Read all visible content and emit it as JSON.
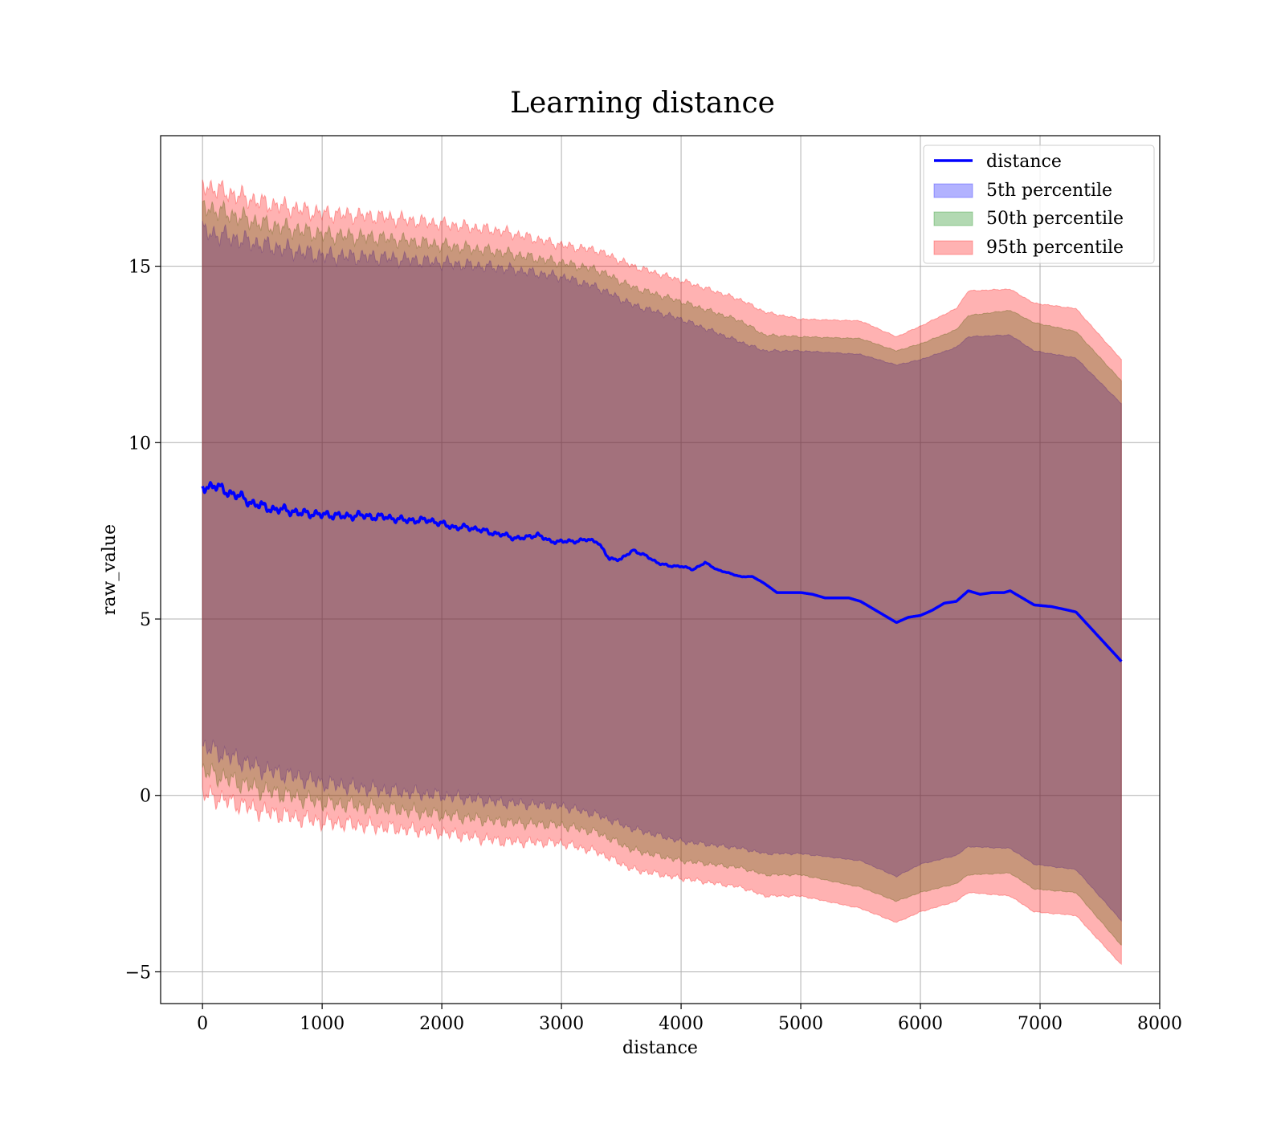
{
  "chart_data": {
    "type": "line",
    "title": "Learning distance",
    "xlabel": "distance",
    "ylabel": "raw_value",
    "xlim": [
      -350,
      8000
    ],
    "ylim": [
      -5.9,
      18.7
    ],
    "xticks": [
      0,
      1000,
      2000,
      3000,
      4000,
      5000,
      6000,
      7000,
      8000
    ],
    "yticks": [
      -5,
      0,
      5,
      10,
      15
    ],
    "xtick_labels": [
      "0",
      "1000",
      "2000",
      "3000",
      "4000",
      "5000",
      "6000",
      "7000",
      "8000"
    ],
    "ytick_labels": [
      "−5",
      "0",
      "5",
      "10",
      "15"
    ],
    "grid": true,
    "legend_position": "top-right",
    "line": {
      "name": "distance",
      "color": "#0000ff",
      "x": [
        0,
        100,
        200,
        300,
        400,
        500,
        600,
        700,
        800,
        900,
        1000,
        1100,
        1200,
        1300,
        1400,
        1500,
        1600,
        1700,
        1800,
        1900,
        2000,
        2100,
        2200,
        2300,
        2400,
        2500,
        2600,
        2700,
        2800,
        2900,
        3000,
        3100,
        3200,
        3300,
        3400,
        3500,
        3600,
        3700,
        3800,
        3900,
        4000,
        4100,
        4200,
        4300,
        4400,
        4500,
        4600,
        4700,
        4800,
        4900,
        5000,
        5100,
        5200,
        5300,
        5400,
        5500,
        5600,
        5700,
        5800,
        5900,
        6000,
        6100,
        6200,
        6300,
        6400,
        6500,
        6600,
        6700,
        6750,
        6950,
        7100,
        7300,
        7680
      ],
      "y": [
        8.7,
        8.8,
        8.6,
        8.5,
        8.3,
        8.2,
        8.1,
        8.1,
        8.0,
        8.0,
        7.95,
        7.95,
        7.9,
        7.95,
        7.9,
        7.9,
        7.85,
        7.8,
        7.8,
        7.8,
        7.7,
        7.6,
        7.6,
        7.55,
        7.45,
        7.4,
        7.3,
        7.3,
        7.4,
        7.2,
        7.2,
        7.2,
        7.25,
        7.2,
        6.7,
        6.7,
        6.95,
        6.8,
        6.6,
        6.5,
        6.5,
        6.4,
        6.6,
        6.4,
        6.3,
        6.2,
        6.2,
        6.0,
        5.75,
        5.75,
        5.75,
        5.7,
        5.6,
        5.6,
        5.6,
        5.5,
        5.3,
        5.1,
        4.9,
        5.05,
        5.1,
        5.25,
        5.45,
        5.5,
        5.8,
        5.7,
        5.75,
        5.75,
        5.8,
        5.4,
        5.35,
        5.2,
        3.8
      ]
    },
    "bands": [
      {
        "name": "5th percentile",
        "color": "#0000ff",
        "opacity": 0.3,
        "x": [
          0,
          500,
          1000,
          1500,
          2000,
          2500,
          3000,
          3300,
          3600,
          4000,
          4500,
          4700,
          5000,
          5500,
          5800,
          6000,
          6300,
          6400,
          6750,
          6950,
          7300,
          7680
        ],
        "upper": [
          16.0,
          15.6,
          15.3,
          15.25,
          15.1,
          14.95,
          14.7,
          14.4,
          13.9,
          13.5,
          12.85,
          12.6,
          12.6,
          12.5,
          12.2,
          12.35,
          12.7,
          13.0,
          13.05,
          12.6,
          12.4,
          11.1
        ],
        "lower": [
          1.4,
          0.75,
          0.35,
          0.15,
          0.0,
          -0.2,
          -0.3,
          -0.55,
          -0.95,
          -1.3,
          -1.5,
          -1.65,
          -1.65,
          -1.85,
          -2.3,
          -1.95,
          -1.7,
          -1.45,
          -1.5,
          -1.95,
          -2.1,
          -3.55
        ]
      },
      {
        "name": "50th percentile",
        "color": "#008000",
        "opacity": 0.3,
        "x": [
          0,
          500,
          1000,
          1500,
          2000,
          2500,
          3000,
          3300,
          3600,
          4000,
          4500,
          4700,
          5000,
          5500,
          5800,
          6000,
          6300,
          6400,
          6750,
          6950,
          7300,
          7680
        ],
        "upper": [
          16.7,
          16.2,
          15.9,
          15.8,
          15.6,
          15.4,
          15.1,
          14.9,
          14.4,
          14.0,
          13.45,
          13.05,
          13.0,
          12.95,
          12.6,
          12.8,
          13.2,
          13.6,
          13.75,
          13.4,
          13.15,
          11.75
        ],
        "lower": [
          0.7,
          0.15,
          -0.2,
          -0.35,
          -0.55,
          -0.75,
          -0.85,
          -1.05,
          -1.55,
          -1.85,
          -2.05,
          -2.25,
          -2.25,
          -2.6,
          -3.0,
          -2.75,
          -2.5,
          -2.25,
          -2.2,
          -2.65,
          -2.75,
          -4.25
        ]
      },
      {
        "name": "95th percentile",
        "color": "#ff0000",
        "opacity": 0.3,
        "x": [
          0,
          500,
          1000,
          1500,
          2000,
          2500,
          3000,
          3300,
          3600,
          4000,
          4500,
          4700,
          5000,
          5500,
          5800,
          6000,
          6300,
          6400,
          6750,
          6950,
          7300,
          7680
        ],
        "upper": [
          17.3,
          16.8,
          16.5,
          16.4,
          16.2,
          16.0,
          15.6,
          15.45,
          15.0,
          14.6,
          14.05,
          13.7,
          13.5,
          13.45,
          13.0,
          13.3,
          13.8,
          14.3,
          14.35,
          13.95,
          13.8,
          12.35
        ],
        "lower": [
          0.05,
          -0.45,
          -0.75,
          -0.9,
          -1.05,
          -1.3,
          -1.35,
          -1.6,
          -2.1,
          -2.35,
          -2.6,
          -2.85,
          -2.85,
          -3.2,
          -3.6,
          -3.3,
          -3.0,
          -2.75,
          -2.85,
          -3.3,
          -3.4,
          -4.8
        ]
      }
    ]
  }
}
